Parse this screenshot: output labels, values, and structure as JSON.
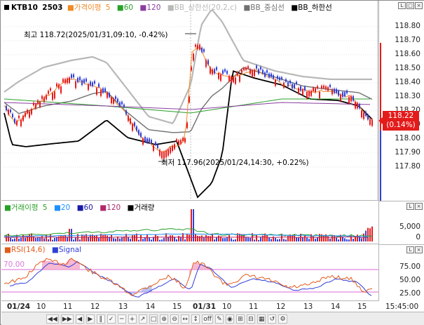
{
  "price_panel": {
    "legend": {
      "symbol": "KTB10",
      "contract": "2503",
      "ma_label": "가격이평",
      "ma_periods": [
        "5",
        "60",
        "120"
      ],
      "bb_upper": "BB_상한선(20,2,c)",
      "bb_mid": "BB_중심선",
      "bb_lower": "BB_하한선"
    },
    "ticks": [
      "118.80",
      "118.70",
      "118.60",
      "118.50",
      "118.40",
      "118.30",
      "118.20",
      "118.10",
      "118.00",
      "117.90",
      "117.80"
    ],
    "current_price": "118.22",
    "current_change": "(0.14%)",
    "high_annotation": "최고 118.72(2025/01/31,09:10, -0.42%)",
    "low_annotation": "최저 117.96(2025/01/24,14:30, +0.22%)",
    "colors": {
      "up": "#e41b1b",
      "down": "#2f3fd6",
      "ma5": "#f08a24",
      "ma60": "#2aa02a",
      "ma120": "#8a3fa0",
      "bb_upper": "#b8b8b8",
      "bb_mid": "#707070",
      "bb_lower": "#000000"
    }
  },
  "volume_panel": {
    "legend": {
      "label": "거래이평",
      "p5": "5",
      "p20": "20",
      "p60": "60",
      "p120": "120",
      "vol": "거래량"
    },
    "ticks": [
      "5,000",
      "0"
    ]
  },
  "rsi_panel": {
    "legend": {
      "rsi": "RSI(14,6)",
      "signal": "Signal"
    },
    "level_label": "70.00",
    "ticks": [
      "75.00",
      "50.00",
      "25.00"
    ]
  },
  "time_axis": {
    "labels": [
      "01/24",
      "10",
      "11",
      "12",
      "13",
      "14",
      "15",
      "01/31",
      "10",
      "11",
      "12",
      "13",
      "14",
      "15"
    ],
    "clock": "15:45:00"
  },
  "toolbar": [
    "◀◀",
    "▶▶",
    "◀",
    "▶",
    "‖",
    "✓",
    "─",
    "+",
    "↗",
    "□",
    "⊕",
    "⊖",
    "↔",
    "↕",
    "off",
    "✎",
    "◉",
    "⊞",
    "⊟",
    "▦",
    "↺",
    "⚙"
  ]
}
